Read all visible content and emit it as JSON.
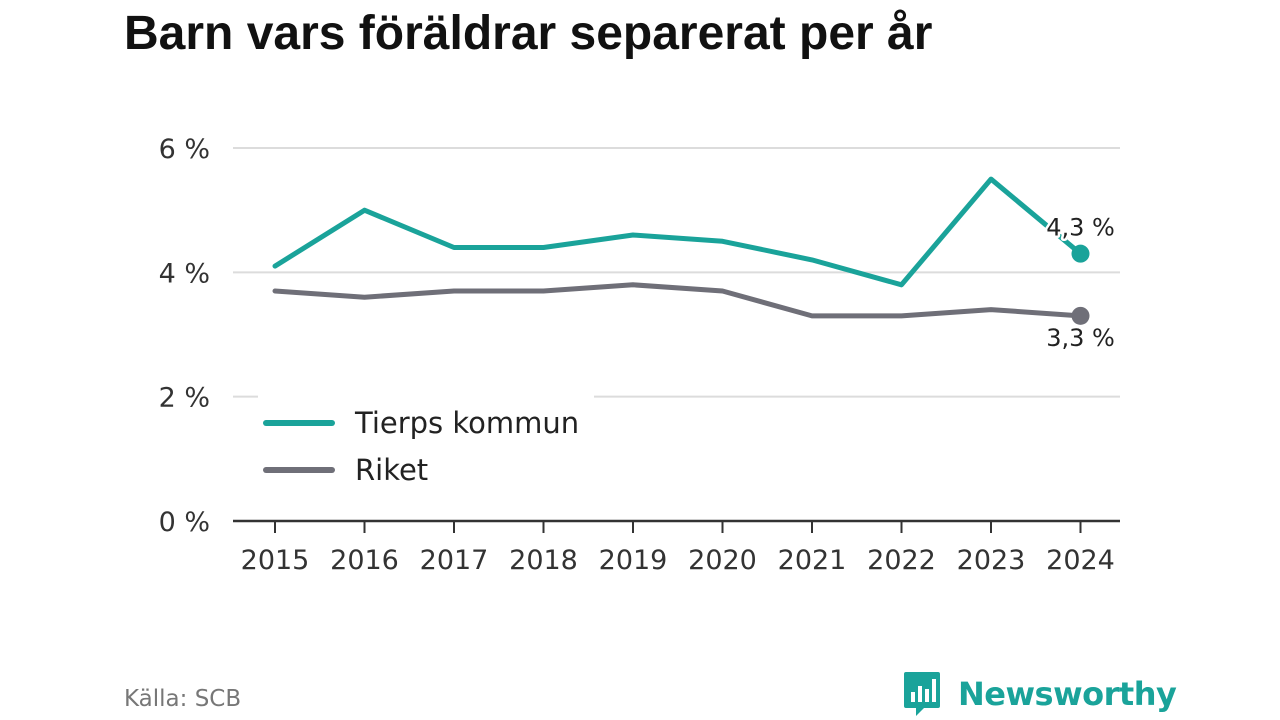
{
  "title": "Barn vars föräldrar separerat per år",
  "source": "Källa: SCB",
  "brand": {
    "name": "Newsworthy",
    "icon": "bar-chart-speech-bubble-icon",
    "color": "#1aa39a"
  },
  "chart_data": {
    "type": "line",
    "title": "Barn vars föräldrar separerat per år",
    "xlabel": "",
    "ylabel": "",
    "x": [
      "2015",
      "2016",
      "2017",
      "2018",
      "2019",
      "2020",
      "2021",
      "2022",
      "2023",
      "2024"
    ],
    "ylim": [
      0,
      6
    ],
    "y_ticks": [
      0,
      2,
      4,
      6
    ],
    "y_tick_labels": [
      "0 %",
      "2 %",
      "4 %",
      "6 %"
    ],
    "grid": true,
    "legend_position": "bottom-left",
    "series": [
      {
        "name": "Tierps kommun",
        "color": "#1aa39a",
        "values": [
          4.1,
          5.0,
          4.4,
          4.4,
          4.6,
          4.5,
          4.2,
          3.8,
          5.5,
          4.3
        ],
        "end_label": "4,3 %"
      },
      {
        "name": "Riket",
        "color": "#6f6f78",
        "values": [
          3.7,
          3.6,
          3.7,
          3.7,
          3.8,
          3.7,
          3.3,
          3.3,
          3.4,
          3.3
        ],
        "end_label": "3,3 %"
      }
    ]
  }
}
